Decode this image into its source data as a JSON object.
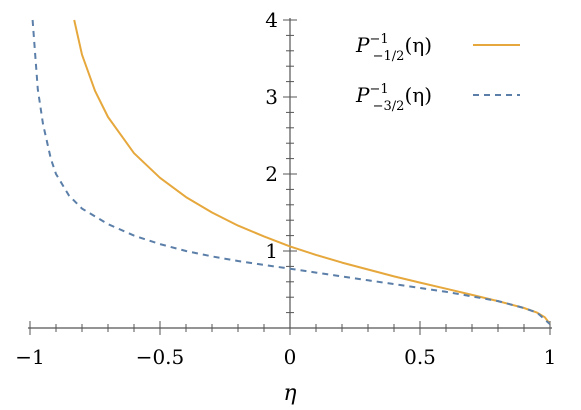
{
  "chart_data": {
    "type": "line",
    "xlabel": "η",
    "ylabel": "",
    "xlim": [
      -1,
      1
    ],
    "ylim": [
      0,
      4
    ],
    "x_ticks": [
      -1,
      -0.5,
      0,
      0.5,
      1
    ],
    "x_tick_labels": [
      "−1",
      "−0.5",
      "0",
      "0.5",
      "1"
    ],
    "y_ticks": [
      1,
      2,
      3,
      4
    ],
    "y_tick_labels": [
      "1",
      "2",
      "3",
      "4"
    ],
    "legend_position": "top-right",
    "series": [
      {
        "name": "P−1/2−1(η)",
        "legend_base": "P",
        "legend_sup": "−1",
        "legend_sub": "−1/2",
        "legend_arg": "(η)",
        "style": "solid",
        "color": "#E6A83C",
        "x": [
          -0.83,
          -0.8,
          -0.75,
          -0.7,
          -0.6,
          -0.5,
          -0.4,
          -0.3,
          -0.2,
          -0.1,
          0,
          0.1,
          0.2,
          0.3,
          0.4,
          0.5,
          0.6,
          0.7,
          0.8,
          0.9,
          0.95,
          0.98,
          1.0
        ],
        "y": [
          4.0,
          3.55,
          3.08,
          2.74,
          2.27,
          1.95,
          1.7,
          1.5,
          1.33,
          1.19,
          1.06,
          0.95,
          0.85,
          0.76,
          0.67,
          0.59,
          0.51,
          0.43,
          0.35,
          0.26,
          0.2,
          0.14,
          0.05
        ]
      },
      {
        "name": "P−3/2−1(η)",
        "legend_base": "P",
        "legend_sup": "−1",
        "legend_sub": "−3/2",
        "legend_arg": "(η)",
        "style": "dashed",
        "color": "#5B7FA8",
        "x": [
          -0.99,
          -0.97,
          -0.95,
          -0.92,
          -0.9,
          -0.85,
          -0.8,
          -0.7,
          -0.6,
          -0.5,
          -0.4,
          -0.3,
          -0.2,
          -0.1,
          0,
          0.1,
          0.2,
          0.3,
          0.4,
          0.5,
          0.6,
          0.7,
          0.8,
          0.9,
          0.95,
          1.0
        ],
        "y": [
          4.0,
          3.1,
          2.65,
          2.2,
          2.0,
          1.72,
          1.55,
          1.35,
          1.2,
          1.09,
          1.0,
          0.93,
          0.87,
          0.82,
          0.77,
          0.72,
          0.67,
          0.62,
          0.57,
          0.52,
          0.47,
          0.41,
          0.35,
          0.26,
          0.2,
          0.05
        ]
      }
    ]
  }
}
